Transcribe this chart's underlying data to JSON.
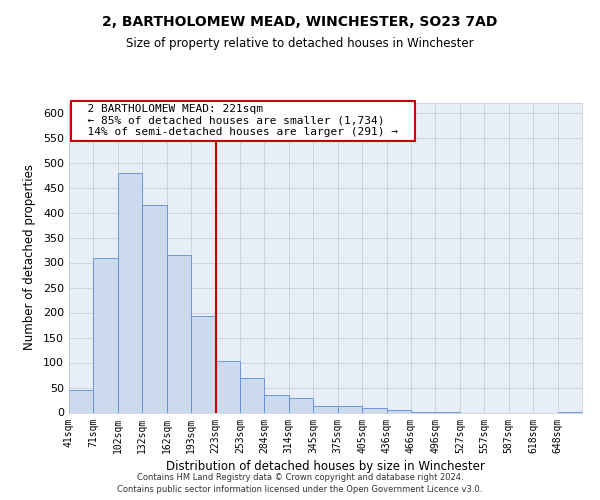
{
  "title": "2, BARTHOLOMEW MEAD, WINCHESTER, SO23 7AD",
  "subtitle": "Size of property relative to detached houses in Winchester",
  "xlabel": "Distribution of detached houses by size in Winchester",
  "ylabel": "Number of detached properties",
  "bar_labels": [
    "41sqm",
    "71sqm",
    "102sqm",
    "132sqm",
    "162sqm",
    "193sqm",
    "223sqm",
    "253sqm",
    "284sqm",
    "314sqm",
    "345sqm",
    "375sqm",
    "405sqm",
    "436sqm",
    "466sqm",
    "496sqm",
    "527sqm",
    "557sqm",
    "587sqm",
    "618sqm",
    "648sqm"
  ],
  "bar_values": [
    46,
    310,
    480,
    415,
    315,
    193,
    104,
    69,
    36,
    30,
    14,
    14,
    9,
    6,
    2,
    2,
    0,
    0,
    0,
    0,
    2
  ],
  "bar_color": "#ccdaee",
  "bar_edge_color": "#5b8ed6",
  "bar_width": 1.0,
  "vline_x": 6,
  "vline_color": "#cc0000",
  "annotation_title": "2 BARTHOLOMEW MEAD: 221sqm",
  "annotation_line1": "← 85% of detached houses are smaller (1,734)",
  "annotation_line2": "14% of semi-detached houses are larger (291) →",
  "ylim": [
    0,
    620
  ],
  "yticks": [
    0,
    50,
    100,
    150,
    200,
    250,
    300,
    350,
    400,
    450,
    500,
    550,
    600
  ],
  "background_color": "#ffffff",
  "plot_bg_color": "#e8eef8",
  "grid_color": "#c0c8d8",
  "footer_line1": "Contains HM Land Registry data © Crown copyright and database right 2024.",
  "footer_line2": "Contains public sector information licensed under the Open Government Licence v3.0."
}
